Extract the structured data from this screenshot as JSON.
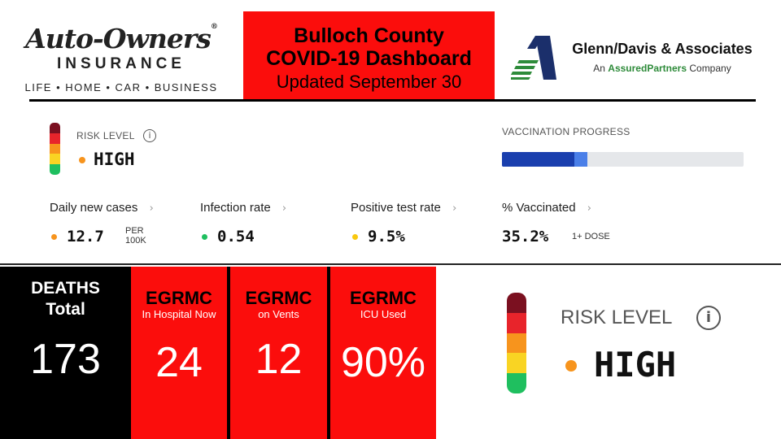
{
  "header": {
    "left_logo": {
      "brand": "Auto-Owners",
      "reg": "®",
      "line2": "INSURANCE",
      "tagline": "LIFE • HOME • CAR • BUSINESS"
    },
    "title": {
      "line1": "Bulloch County",
      "line2": "COVID-19 Dashboard",
      "line3": "Updated September 30"
    },
    "right_logo": {
      "name": "Glenn/Davis & Associates",
      "sub_prefix": "An ",
      "sub_brand": "AssuredPartners",
      "sub_suffix": " Company",
      "icon": "triangle-a-logo-icon"
    }
  },
  "dashboard": {
    "risk_label": "RISK LEVEL",
    "info_icon": "i",
    "risk_value": "HIGH",
    "vaccination_label": "VACCINATION PROGRESS",
    "vaccination_progress": {
      "fully": 0.3,
      "one_dose": 0.352
    },
    "metrics": [
      {
        "label": "Daily new cases",
        "value": "12.7",
        "unit_1": "PER",
        "unit_2": "100K",
        "dot_color": "#f7941d"
      },
      {
        "label": "Infection rate",
        "value": "0.54",
        "dot_color": "#1fbf5f"
      },
      {
        "label": "Positive test rate",
        "value": "9.5%",
        "dot_color": "#f9c80e"
      },
      {
        "label": "% Vaccinated",
        "value": "35.2%",
        "unit_1": "1+ DOSE"
      }
    ],
    "chevron": "›"
  },
  "tiles": {
    "deaths": {
      "title_1": "DEATHS",
      "title_2": "Total",
      "value": "173"
    },
    "hospital": {
      "title": "EGRMC",
      "sub": "In Hospital Now",
      "value": "24"
    },
    "vents": {
      "title": "EGRMC",
      "sub": "on Vents",
      "value": "12"
    },
    "icu": {
      "title": "EGRMC",
      "sub": "ICU Used",
      "value": "90%"
    }
  },
  "risk_large": {
    "label": "RISK LEVEL",
    "info_icon": "i",
    "value": "HIGH"
  },
  "colors": {
    "red": "#fb0d0c",
    "orange": "#f7941d",
    "green": "#1fbf5f",
    "navy": "#1a3fae"
  }
}
